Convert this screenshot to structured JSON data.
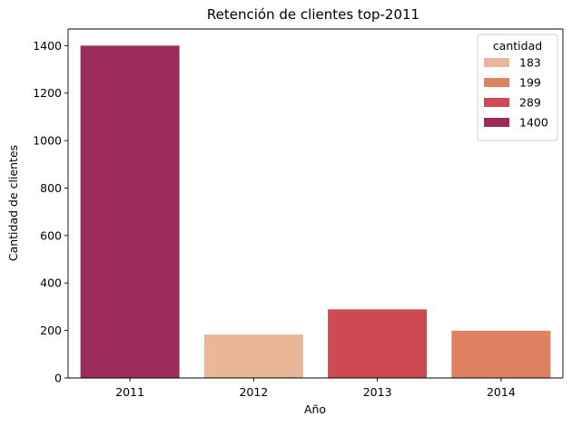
{
  "chart_data": {
    "type": "bar",
    "title": "Retención de clientes top-2011",
    "xlabel": "Año",
    "ylabel": "Cantidad de clientes",
    "categories": [
      "2011",
      "2012",
      "2013",
      "2014"
    ],
    "values": [
      1400,
      183,
      289,
      199
    ],
    "bar_colors": [
      "#9a2b5a",
      "#e9b797",
      "#cd4a53",
      "#e08262"
    ],
    "ylim": [
      0,
      1470
    ],
    "yticks": [
      0,
      200,
      400,
      600,
      800,
      1000,
      1200,
      1400
    ],
    "grid": false,
    "legend": {
      "title": "cantidad",
      "position": "top-right",
      "entries": [
        {
          "label": "183",
          "color": "#e9b797"
        },
        {
          "label": "199",
          "color": "#e08262"
        },
        {
          "label": "289",
          "color": "#cd4a53"
        },
        {
          "label": "1400",
          "color": "#9a2b5a"
        }
      ]
    }
  }
}
